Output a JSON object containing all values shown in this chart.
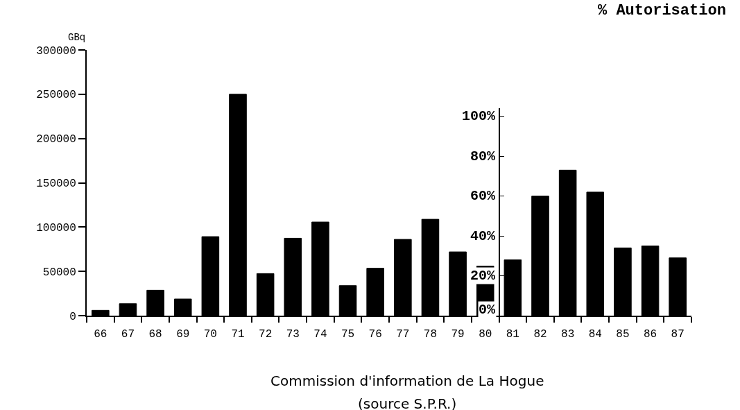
{
  "chart_data": {
    "type": "bar",
    "ylabel": "GBq",
    "y2label": "% Autorisation",
    "categories": [
      "66",
      "67",
      "68",
      "69",
      "70",
      "71",
      "72",
      "73",
      "74",
      "75",
      "76",
      "77",
      "78",
      "79",
      "80",
      "81",
      "82",
      "83",
      "84",
      "85",
      "86",
      "87"
    ],
    "series": [
      {
        "color": "#000000",
        "values": [
          6000,
          13500,
          28700,
          18800,
          89200,
          250000,
          47500,
          87400,
          105700,
          33900,
          53500,
          86100,
          108800,
          72000,
          56000,
          null,
          null,
          null,
          null,
          null,
          null,
          null
        ]
      },
      {
        "color": "#000000",
        "axis": "y2",
        "values": [
          null,
          null,
          null,
          null,
          null,
          null,
          null,
          null,
          null,
          null,
          null,
          null,
          null,
          null,
          null,
          28,
          60,
          73,
          62,
          34,
          35,
          29
        ]
      }
    ],
    "ylim": [
      0,
      300000
    ],
    "yticks": [
      0,
      50000,
      100000,
      150000,
      200000,
      250000,
      300000
    ],
    "y2lim": [
      0,
      104
    ],
    "y2ticks": [
      {
        "value": 0,
        "label": "0%"
      },
      {
        "value": 20,
        "label": "20%"
      },
      {
        "value": 40,
        "label": "40%"
      },
      {
        "value": 60,
        "label": "60%"
      },
      {
        "value": 80,
        "label": "80%"
      },
      {
        "value": 100,
        "label": "100%"
      }
    ],
    "annotations": [
      "Commission d'information de La Hogue",
      "(source S.P.R.)"
    ]
  }
}
